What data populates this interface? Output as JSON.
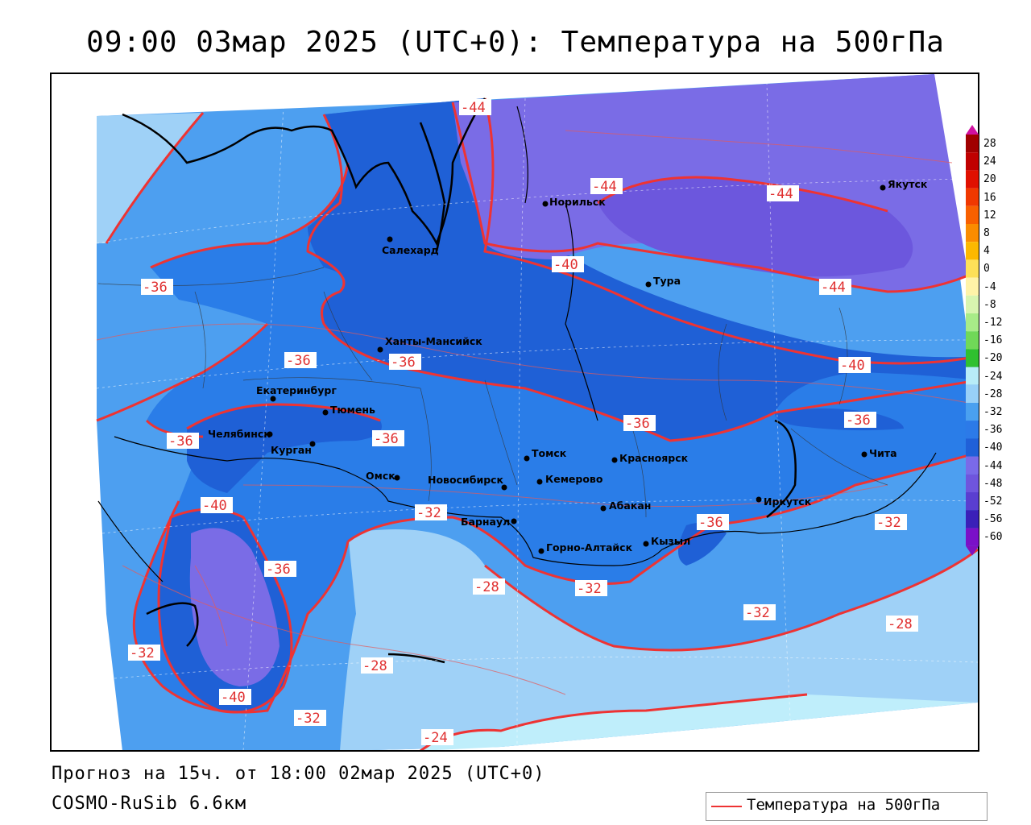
{
  "header": {
    "title": "09:00 03мар 2025 (UTC+0): Температура на 500гПа"
  },
  "footer": {
    "forecast": "Прогноз на 15ч. от 18:00 02мар 2025 (UTC+0)",
    "model": "COSMO-RuSib 6.6км"
  },
  "legend": {
    "label": "Температура на 500гПа",
    "line_color": "#ee3333"
  },
  "colorbar": {
    "labels": [
      "28",
      "24",
      "20",
      "16",
      "12",
      "8",
      "4",
      "0",
      "-4",
      "-8",
      "-12",
      "-16",
      "-20",
      "-24",
      "-28",
      "-32",
      "-36",
      "-40",
      "-44",
      "-48",
      "-52",
      "-56",
      "-60"
    ],
    "colors": [
      "#a00000",
      "#c00000",
      "#e01000",
      "#f03800",
      "#f86000",
      "#fa8c00",
      "#fcb800",
      "#fde058",
      "#fff3a8",
      "#d8f5b0",
      "#a8ec88",
      "#70d858",
      "#30c030",
      "#b8ecf8",
      "#98d0f8",
      "#4aa0f0",
      "#2c7ae8",
      "#2060d8",
      "#7a6ae8",
      "#6f55dd",
      "#5a3ed0",
      "#3a20b8",
      "#7a10c8"
    ],
    "top_arrow_color": "#d010a0",
    "bottom_arrow_color": "#8010c0"
  },
  "map": {
    "colors": {
      "t_minus_24": "#bfeefb",
      "t_minus_28": "#9fd1f7",
      "t_minus_32": "#4d9ff0",
      "t_minus_36": "#2a7de8",
      "t_minus_40": "#1f60d6",
      "t_minus_44": "#7a6ce6",
      "t_minus_48": "#6c57dd",
      "contour": "#ee3333",
      "border": "#000000"
    },
    "cities": [
      {
        "name": "Якутск"
      },
      {
        "name": "Норильск"
      },
      {
        "name": "Салехард"
      },
      {
        "name": "Тура"
      },
      {
        "name": "Ханты-Мансийск"
      },
      {
        "name": "Екатеринбург"
      },
      {
        "name": "Тюмень"
      },
      {
        "name": "Челябинск"
      },
      {
        "name": "Курган"
      },
      {
        "name": "Омск"
      },
      {
        "name": "Новосибирск"
      },
      {
        "name": "Томск"
      },
      {
        "name": "Кемерово"
      },
      {
        "name": "Красноярск"
      },
      {
        "name": "Абакан"
      },
      {
        "name": "Барнаул"
      },
      {
        "name": "Горно-Алтайск"
      },
      {
        "name": "Кызыл"
      },
      {
        "name": "Иркутск"
      },
      {
        "name": "Чита"
      }
    ],
    "contour_labels": [
      "-44",
      "-44",
      "-44",
      "-44",
      "-40",
      "-40",
      "-40",
      "-36",
      "-36",
      "-36",
      "-36",
      "-36",
      "-36",
      "-36",
      "-36",
      "-36",
      "-32",
      "-32",
      "-32",
      "-32",
      "-32",
      "-32",
      "-28",
      "-28",
      "-28",
      "-24"
    ]
  }
}
